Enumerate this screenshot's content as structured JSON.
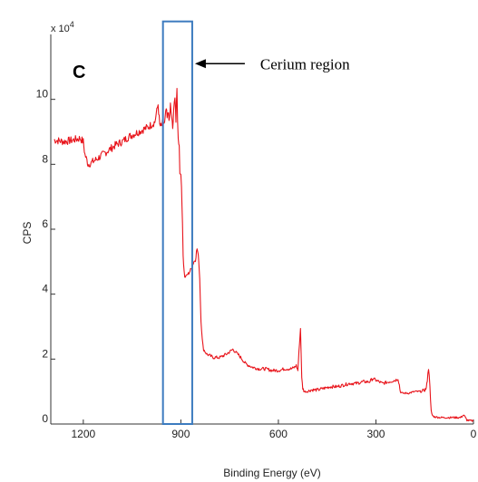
{
  "chart_data": {
    "type": "line",
    "title": "",
    "xlabel": "Binding Energy (eV)",
    "ylabel": "CPS",
    "y_multiplier": "x 10",
    "y_multiplier_exp": "4",
    "panel_label": "C",
    "xlim": [
      1300,
      0
    ],
    "x_reversed": true,
    "ylim": [
      0,
      12
    ],
    "x_ticks": [
      1200,
      900,
      600,
      300,
      0
    ],
    "y_ticks": [
      0,
      2,
      4,
      6,
      8,
      10
    ],
    "grid": false,
    "line_color": "#e8141b",
    "series": [
      {
        "x": [
          1290,
          1260,
          1230,
          1210,
          1200,
          1195,
          1185,
          1175,
          1160,
          1140,
          1120,
          1100,
          1080,
          1060,
          1040,
          1020,
          1000,
          980,
          970,
          965,
          960,
          955,
          950,
          945,
          942,
          938,
          935,
          932,
          928,
          925,
          922,
          918,
          915,
          912,
          910,
          908,
          905,
          903,
          900,
          898,
          895,
          893,
          890,
          888,
          886,
          884,
          882,
          880,
          875,
          870,
          865,
          860,
          855,
          852,
          850,
          848,
          845,
          842,
          840,
          838,
          836,
          834,
          832,
          830,
          820,
          800,
          780,
          760,
          740,
          730,
          720,
          700,
          680,
          660,
          640,
          620,
          600,
          580,
          560,
          550,
          545,
          540,
          535,
          532,
          530,
          528,
          525,
          520,
          510,
          500,
          480,
          460,
          440,
          420,
          400,
          380,
          360,
          340,
          320,
          310,
          300,
          290,
          280,
          260,
          240,
          232,
          228,
          225,
          220,
          200,
          180,
          160,
          150,
          145,
          142,
          140,
          138,
          136,
          134,
          132,
          130,
          128,
          125,
          120,
          100,
          80,
          60,
          40,
          30,
          20,
          10,
          0
        ],
        "y": [
          8.75,
          8.7,
          8.75,
          8.8,
          8.7,
          8.3,
          8.0,
          8.05,
          8.15,
          8.3,
          8.45,
          8.6,
          8.7,
          8.85,
          8.95,
          9.05,
          9.15,
          9.3,
          9.85,
          9.2,
          9.15,
          9.3,
          9.25,
          9.7,
          9.4,
          9.6,
          9.3,
          9.85,
          9.4,
          9.1,
          9.6,
          10.15,
          9.3,
          10.3,
          9.4,
          8.75,
          8.65,
          7.7,
          7.8,
          7.2,
          6.3,
          5.2,
          4.7,
          4.55,
          4.5,
          4.6,
          4.55,
          4.6,
          4.65,
          4.75,
          4.85,
          5.0,
          5.05,
          5.3,
          5.4,
          5.3,
          5.05,
          4.5,
          3.8,
          3.2,
          2.9,
          2.6,
          2.4,
          2.3,
          2.15,
          2.05,
          2.05,
          2.15,
          2.3,
          2.2,
          2.1,
          1.85,
          1.75,
          1.7,
          1.7,
          1.65,
          1.65,
          1.7,
          1.7,
          1.75,
          1.8,
          1.65,
          2.5,
          2.95,
          2.2,
          1.4,
          1.1,
          1.0,
          1.0,
          1.05,
          1.05,
          1.1,
          1.15,
          1.15,
          1.2,
          1.25,
          1.25,
          1.3,
          1.3,
          1.4,
          1.35,
          1.3,
          1.25,
          1.3,
          1.35,
          1.4,
          1.2,
          1.0,
          0.95,
          0.95,
          1.0,
          1.0,
          1.05,
          1.1,
          1.35,
          1.6,
          1.65,
          1.55,
          1.2,
          0.7,
          0.4,
          0.3,
          0.25,
          0.22,
          0.2,
          0.2,
          0.2,
          0.2,
          0.28,
          0.12,
          0.1,
          0.1
        ]
      }
    ],
    "annotations": [
      {
        "type": "box",
        "x_range": [
          955,
          865
        ],
        "y_range": [
          0,
          12.4
        ],
        "color": "#3c7bbf"
      },
      {
        "type": "arrow",
        "text": "Cerium region",
        "points_to_x": 865,
        "at_y": 11.1
      }
    ]
  }
}
